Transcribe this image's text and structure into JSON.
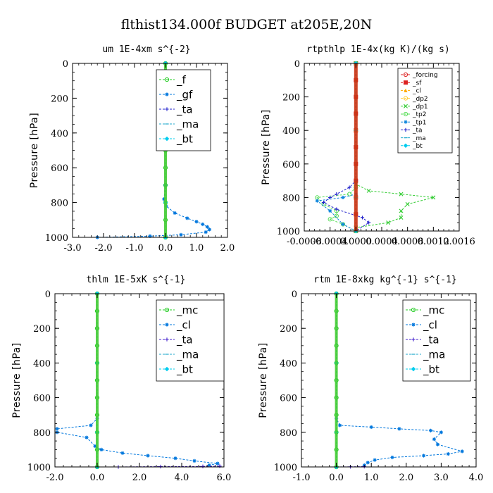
{
  "page": {
    "title": "flthist134.000f  BUDGET at205E,20N"
  },
  "chart_data": [
    {
      "type": "line",
      "title": "um  1E-4xm s^{-2}",
      "ylabel": "Pressure [hPa]",
      "xlim": [
        -3.0,
        2.0
      ],
      "ylim": [
        0,
        1000
      ],
      "xticks": [
        "-3.0",
        "-2.0",
        "-1.0",
        "0.0",
        "1.0",
        "2.0"
      ],
      "xtick_values": [
        -3,
        -2,
        -1,
        0,
        1,
        2
      ],
      "yticks": [
        "0",
        "200",
        "400",
        "600",
        "800",
        "1000"
      ],
      "ytick_values": [
        0,
        200,
        400,
        600,
        800,
        1000
      ],
      "legend_placement": "top-right",
      "legend_size": "large",
      "series": [
        {
          "name": "_f",
          "color": "#22cc22",
          "marker": "o",
          "x": [
            0,
            0,
            0,
            0,
            0,
            0,
            0,
            0,
            0,
            0,
            0
          ],
          "y": [
            0,
            100,
            200,
            300,
            400,
            500,
            600,
            700,
            800,
            900,
            1000
          ]
        },
        {
          "name": "_gf",
          "color": "#0077dd",
          "marker": "*",
          "x": [
            0,
            0,
            0,
            -0.05,
            0.02,
            0.3,
            0.7,
            1.0,
            1.2,
            1.35,
            1.42,
            1.3,
            0.5,
            -0.5,
            -2.2
          ],
          "y": [
            0,
            200,
            700,
            780,
            820,
            860,
            890,
            910,
            925,
            940,
            955,
            970,
            985,
            993,
            1000
          ]
        },
        {
          "name": "_ta",
          "color": "#2222cc",
          "marker": "+",
          "x": [
            0,
            0,
            0,
            0
          ],
          "y": [
            0,
            400,
            800,
            1000
          ]
        },
        {
          "name": "_ma",
          "color": "#22aacc",
          "marker": "-",
          "x": [
            0,
            0,
            0,
            0
          ],
          "y": [
            0,
            400,
            800,
            1000
          ]
        },
        {
          "name": "_bt",
          "color": "#00ccee",
          "marker": "D",
          "x": [
            0,
            0,
            0,
            0
          ],
          "y": [
            0,
            400,
            800,
            1000
          ]
        }
      ]
    },
    {
      "type": "line",
      "title": "rtpthlp  1E-4x(kg K)/(kg s)",
      "ylabel": "Pressure [hPa]",
      "xlim": [
        -0.0008,
        0.0016
      ],
      "ylim": [
        0,
        1000
      ],
      "xticks": [
        "-0.0008",
        "-0.0004",
        "0.0000",
        "0.0004",
        "0.0008",
        "0.0012",
        "0.0016"
      ],
      "xtick_values": [
        -0.0008,
        -0.0004,
        0.0,
        0.0004,
        0.0008,
        0.0012,
        0.0016
      ],
      "yticks": [
        "0",
        "200",
        "400",
        "600",
        "800",
        "1000"
      ],
      "ytick_values": [
        0,
        200,
        400,
        600,
        800,
        1000
      ],
      "legend_placement": "top-right",
      "legend_size": "small",
      "series": [
        {
          "name": "_forcing",
          "color": "#dd2222",
          "marker": "o",
          "x": [
            0,
            0,
            0,
            0
          ],
          "y": [
            0,
            400,
            800,
            1000
          ]
        },
        {
          "name": "_sf",
          "color": "#dd2222",
          "marker": "s",
          "x": [
            0,
            0,
            0,
            0,
            0,
            0,
            0,
            0,
            0,
            0,
            0
          ],
          "y": [
            0,
            100,
            200,
            300,
            400,
            500,
            600,
            700,
            800,
            900,
            1000
          ]
        },
        {
          "name": "_cl",
          "color": "#ffaa00",
          "marker": "^",
          "x": [
            0,
            0,
            0,
            0
          ],
          "y": [
            0,
            400,
            800,
            1000
          ]
        },
        {
          "name": "_dp2",
          "color": "#ffcc33",
          "marker": "o",
          "x": [
            0,
            0,
            0,
            0
          ],
          "y": [
            0,
            400,
            800,
            1000
          ]
        },
        {
          "name": "_dp1",
          "color": "#33cc33",
          "marker": "x",
          "x": [
            0,
            0,
            0.0002,
            0.0007,
            0.0012,
            0.0008,
            0.0007,
            0.0007,
            0.0005,
            0.0,
            0.0
          ],
          "y": [
            0,
            720,
            760,
            780,
            800,
            840,
            880,
            920,
            950,
            980,
            1000
          ]
        },
        {
          "name": "_tp2",
          "color": "#55dd55",
          "marker": "o",
          "x": [
            0,
            0,
            -0.0001,
            -0.0006,
            -0.0005,
            -0.0003,
            -0.0003,
            -0.0004,
            -0.0002,
            0.0
          ],
          "y": [
            0,
            740,
            780,
            800,
            840,
            880,
            910,
            930,
            960,
            1000
          ]
        },
        {
          "name": "_tp1",
          "color": "#1188dd",
          "marker": "*",
          "x": [
            0,
            0,
            -0.0002,
            -0.0006,
            -0.0004,
            -0.0002,
            0.0
          ],
          "y": [
            0,
            780,
            800,
            820,
            880,
            960,
            1000
          ]
        },
        {
          "name": "_ta",
          "color": "#2222cc",
          "marker": "+",
          "x": [
            0,
            0,
            -0.0001,
            -0.0003,
            -0.0004,
            -0.0005,
            -0.0003,
            0.0001,
            0.0002,
            0.0
          ],
          "y": [
            0,
            700,
            740,
            780,
            800,
            830,
            870,
            920,
            950,
            1000
          ]
        },
        {
          "name": "_ma",
          "color": "#22aacc",
          "marker": "-",
          "x": [
            0,
            0,
            0,
            0
          ],
          "y": [
            0,
            400,
            800,
            1000
          ]
        },
        {
          "name": "_bt",
          "color": "#00ccee",
          "marker": "D",
          "x": [
            0,
            0,
            0,
            0
          ],
          "y": [
            0,
            400,
            800,
            1000
          ]
        }
      ]
    },
    {
      "type": "line",
      "title": "thlm  1E-5xK s^{-1}",
      "ylabel": "Pressure [hPa]",
      "xlim": [
        -2.0,
        6.0
      ],
      "ylim": [
        0,
        1000
      ],
      "xticks": [
        "-2.0",
        "0.0",
        "2.0",
        "4.0",
        "6.0"
      ],
      "xtick_values": [
        -2,
        0,
        2,
        4,
        6
      ],
      "yticks": [
        "0",
        "200",
        "400",
        "600",
        "800",
        "1000"
      ],
      "ytick_values": [
        0,
        200,
        400,
        600,
        800,
        1000
      ],
      "legend_placement": "top-right",
      "legend_size": "large",
      "series": [
        {
          "name": "_mc",
          "color": "#22cc22",
          "marker": "o",
          "x": [
            0,
            0,
            0,
            0,
            0,
            0,
            0,
            0,
            0,
            0,
            0
          ],
          "y": [
            0,
            100,
            200,
            300,
            400,
            500,
            600,
            700,
            800,
            900,
            1000
          ]
        },
        {
          "name": "_cl",
          "color": "#0077dd",
          "marker": "*",
          "x": [
            0,
            0,
            -0.3,
            -1.9,
            -1.9,
            -0.5,
            -0.1,
            0.2,
            1.2,
            2.4,
            3.7,
            4.6,
            5.7,
            5.3
          ],
          "y": [
            0,
            720,
            760,
            780,
            800,
            830,
            880,
            900,
            920,
            935,
            950,
            965,
            980,
            990
          ]
        },
        {
          "name": "_ta",
          "color": "#4422cc",
          "marker": "+",
          "x": [
            0,
            1.0,
            3.0,
            5.0,
            5.8
          ],
          "y": [
            1000,
            1000,
            998,
            997,
            995
          ]
        },
        {
          "name": "_ma",
          "color": "#22aacc",
          "marker": "-",
          "x": [
            0,
            0,
            0,
            0
          ],
          "y": [
            0,
            400,
            800,
            1000
          ]
        },
        {
          "name": "_bt",
          "color": "#00ccee",
          "marker": "D",
          "x": [
            0,
            0,
            0,
            0
          ],
          "y": [
            0,
            400,
            800,
            1000
          ]
        }
      ]
    },
    {
      "type": "line",
      "title": "rtm  1E-8xkg kg^{-1} s^{-1}",
      "ylabel": "Pressure [hPa]",
      "xlim": [
        -1.0,
        4.0
      ],
      "ylim": [
        0,
        1000
      ],
      "xticks": [
        "-1.0",
        "0.0",
        "1.0",
        "2.0",
        "3.0",
        "4.0"
      ],
      "xtick_values": [
        -1,
        0,
        1,
        2,
        3,
        4
      ],
      "yticks": [
        "0",
        "200",
        "400",
        "600",
        "800",
        "1000"
      ],
      "ytick_values": [
        0,
        200,
        400,
        600,
        800,
        1000
      ],
      "legend_placement": "top-right",
      "legend_size": "large",
      "series": [
        {
          "name": "_mc",
          "color": "#22cc22",
          "marker": "o",
          "x": [
            0,
            0,
            0,
            0,
            0,
            0,
            0,
            0,
            0,
            0,
            0
          ],
          "y": [
            0,
            100,
            200,
            300,
            400,
            500,
            600,
            700,
            800,
            900,
            1000
          ]
        },
        {
          "name": "_cl",
          "color": "#0077dd",
          "marker": "*",
          "x": [
            0,
            0,
            0.1,
            1.0,
            1.8,
            2.7,
            3.0,
            2.8,
            2.9,
            3.6,
            3.2,
            2.5,
            1.6,
            1.1,
            0.9,
            0.8
          ],
          "y": [
            0,
            720,
            760,
            770,
            780,
            790,
            800,
            840,
            870,
            910,
            925,
            935,
            945,
            960,
            975,
            990
          ]
        },
        {
          "name": "_ta",
          "color": "#4422cc",
          "marker": "+",
          "x": [
            0,
            0.4,
            0.8
          ],
          "y": [
            1000,
            999,
            998
          ]
        },
        {
          "name": "_ma",
          "color": "#22aacc",
          "marker": "-",
          "x": [
            0,
            0,
            0,
            0
          ],
          "y": [
            0,
            400,
            800,
            1000
          ]
        },
        {
          "name": "_bt",
          "color": "#00ccee",
          "marker": "D",
          "x": [
            0,
            0,
            0,
            0
          ],
          "y": [
            0,
            400,
            800,
            1000
          ]
        }
      ]
    }
  ]
}
